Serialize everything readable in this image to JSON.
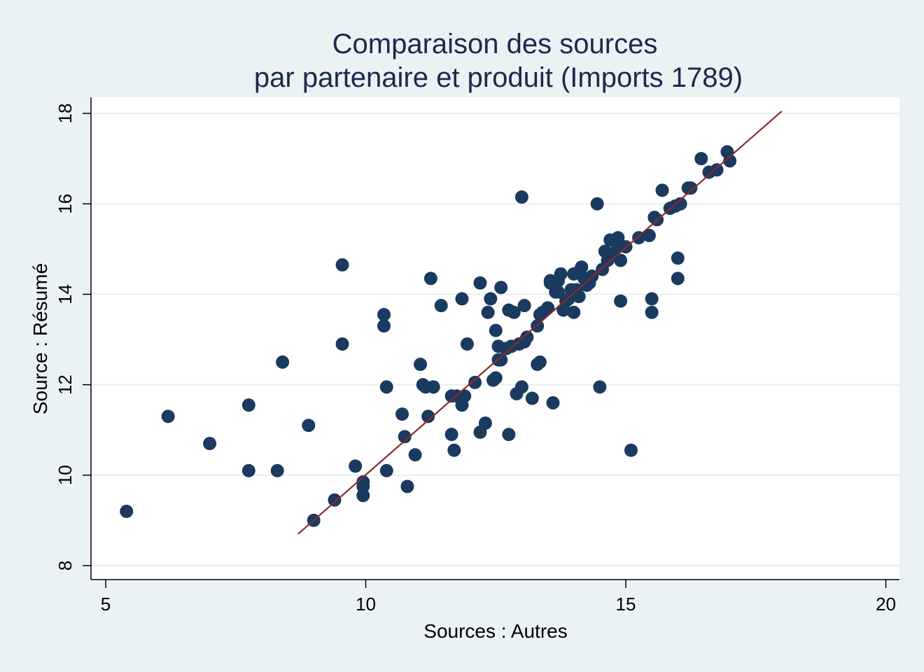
{
  "chart_data": {
    "type": "scatter",
    "title": [
      "Comparaison des sources",
      "par partenaire et produit (Imports 1789)"
    ],
    "xlabel": "Sources : Autres",
    "ylabel": "Source : Résumé",
    "xlim": [
      4.5,
      20.5
    ],
    "ylim": [
      7.7,
      18.4
    ],
    "xticks": [
      5,
      10,
      15,
      20
    ],
    "yticks": [
      8,
      10,
      12,
      14,
      16,
      18
    ],
    "grid": true,
    "legend": "none",
    "colors": {
      "background": "#eaf2f3",
      "plot_area": "#ffffff",
      "gridline": "#e6eef0",
      "points": "#1a3a5f",
      "fit_line": "#8b2a2a",
      "title": "#1a2a4f"
    },
    "fit_line": {
      "x": [
        8.7,
        18.0
      ],
      "y": [
        8.7,
        18.05
      ]
    },
    "series": [
      {
        "x": [
          5.4,
          6.2,
          7.0,
          7.75,
          7.75,
          8.3,
          8.4,
          8.9,
          9.0,
          9.4,
          9.55,
          9.55,
          9.8,
          9.95,
          9.95,
          9.95,
          10.35,
          10.35,
          10.4,
          10.4,
          10.7,
          10.75,
          10.8,
          10.95,
          11.05,
          11.1,
          11.15,
          11.2,
          11.25,
          11.3,
          11.3,
          11.45,
          11.65,
          11.65,
          11.7,
          11.75,
          11.85,
          11.85,
          11.9,
          11.95,
          12.1,
          12.2,
          12.2,
          12.3,
          12.35,
          12.4,
          12.45,
          12.5,
          12.5,
          12.55,
          12.55,
          12.6,
          12.6,
          12.7,
          12.75,
          12.75,
          12.8,
          12.85,
          12.9,
          12.95,
          13.0,
          13.0,
          13.05,
          13.05,
          13.1,
          13.2,
          13.3,
          13.3,
          13.35,
          13.35,
          13.4,
          13.5,
          13.55,
          13.55,
          13.6,
          13.65,
          13.7,
          13.7,
          13.75,
          13.8,
          13.85,
          13.9,
          13.95,
          14.0,
          14.0,
          14.05,
          14.1,
          14.1,
          14.15,
          14.2,
          14.25,
          14.3,
          14.35,
          14.45,
          14.5,
          14.55,
          14.6,
          14.65,
          14.7,
          14.75,
          14.85,
          14.85,
          14.9,
          14.9,
          15.0,
          15.1,
          15.25,
          15.45,
          15.5,
          15.5,
          15.55,
          15.6,
          15.7,
          15.85,
          16.0,
          16.0,
          16.05,
          16.2,
          16.25,
          16.45,
          16.6,
          16.75,
          16.95,
          17.0,
          15.95
        ],
        "y": [
          9.2,
          11.3,
          10.7,
          10.1,
          11.55,
          10.1,
          12.5,
          11.1,
          9.0,
          9.45,
          14.65,
          12.9,
          10.2,
          9.55,
          9.75,
          9.85,
          13.55,
          13.3,
          11.95,
          10.1,
          11.35,
          10.85,
          9.75,
          10.45,
          12.45,
          12.0,
          11.95,
          11.3,
          14.35,
          11.95,
          11.95,
          13.75,
          11.75,
          10.9,
          10.55,
          11.75,
          11.55,
          13.9,
          11.75,
          12.9,
          12.05,
          10.95,
          14.25,
          11.15,
          13.6,
          13.9,
          12.1,
          12.15,
          13.2,
          12.85,
          12.55,
          14.15,
          12.55,
          12.8,
          13.65,
          10.9,
          12.85,
          13.6,
          11.8,
          12.9,
          11.95,
          16.15,
          12.95,
          13.75,
          13.05,
          11.7,
          12.45,
          13.3,
          12.5,
          13.55,
          13.6,
          13.7,
          14.3,
          14.25,
          11.6,
          14.05,
          14.3,
          14.05,
          14.45,
          13.65,
          13.85,
          13.9,
          14.1,
          13.6,
          14.45,
          14.1,
          14.5,
          13.95,
          14.6,
          14.35,
          14.2,
          14.25,
          14.4,
          16.0,
          11.95,
          14.55,
          14.95,
          14.75,
          15.2,
          14.9,
          15.25,
          15.05,
          14.75,
          13.85,
          15.05,
          10.55,
          15.25,
          15.3,
          13.6,
          13.9,
          15.7,
          15.65,
          16.3,
          15.9,
          14.8,
          14.35,
          16.0,
          16.35,
          16.35,
          17.0,
          16.7,
          16.75,
          17.15,
          16.95,
          15.95
        ]
      }
    ]
  }
}
